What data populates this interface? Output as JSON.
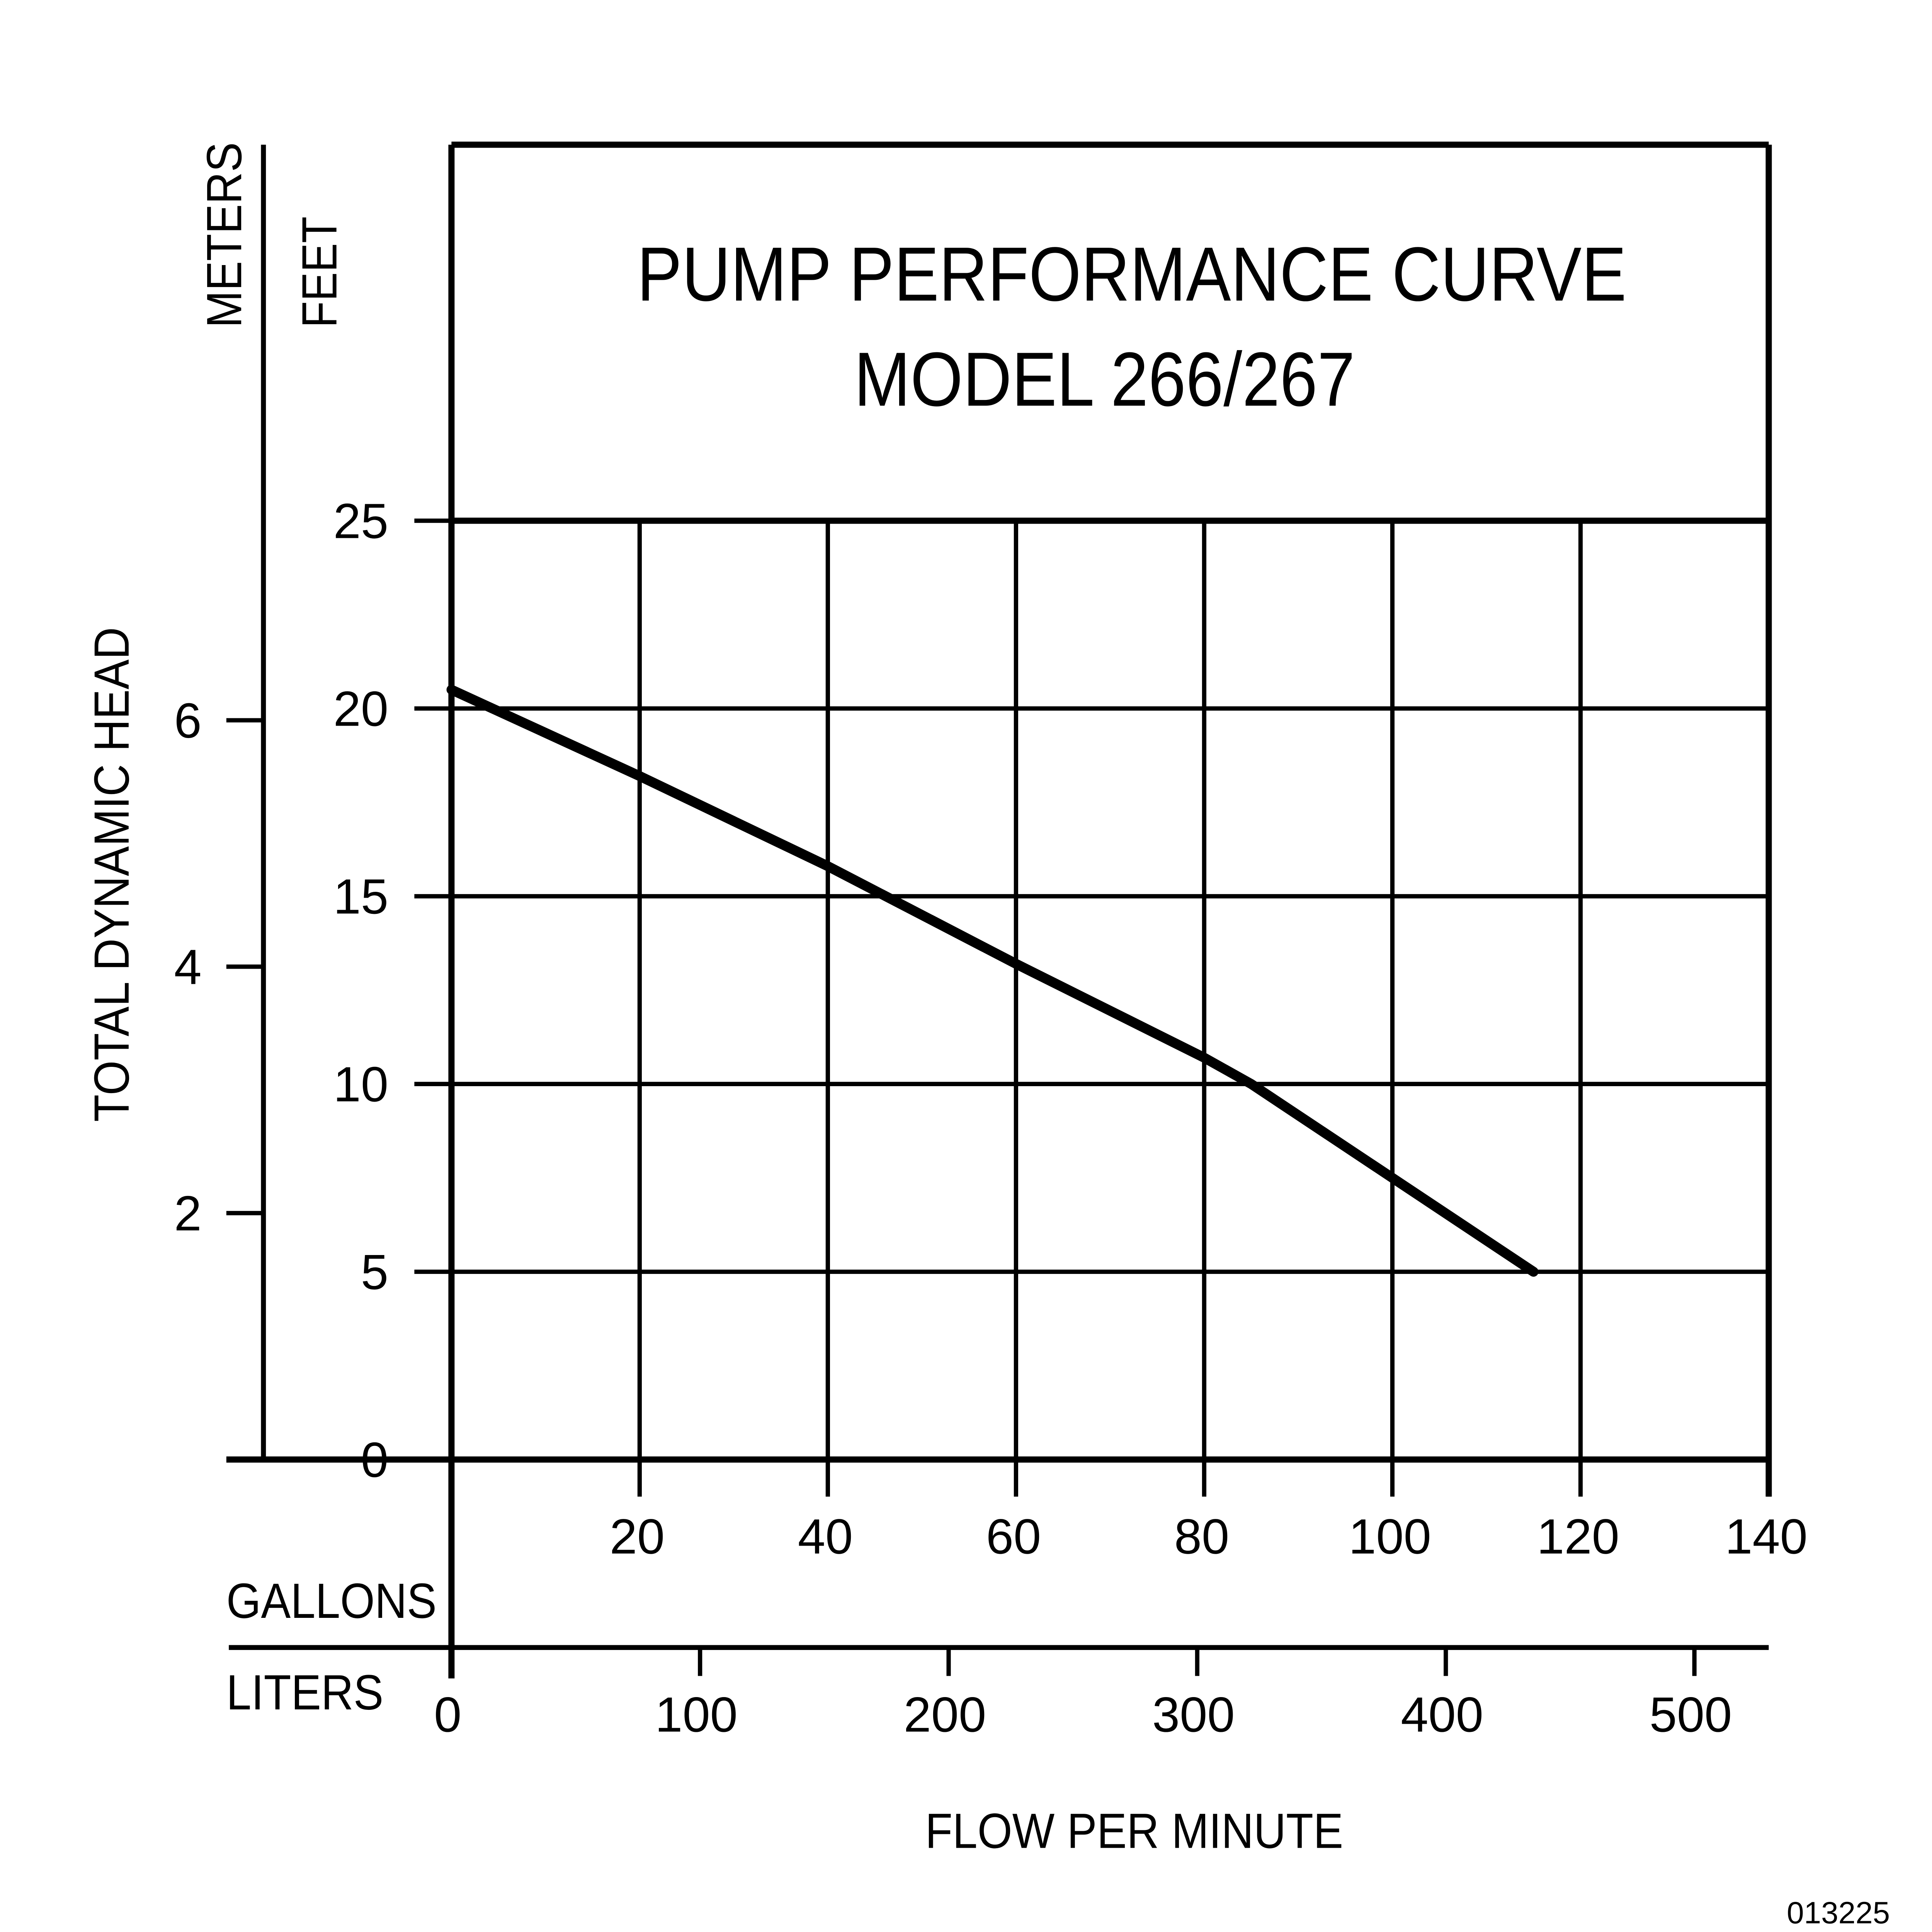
{
  "chart_data": {
    "type": "line",
    "title": "PUMP PERFORMANCE CURVE",
    "subtitle": "MODEL 266/267",
    "xlabel": "FLOW PER MINUTE",
    "ylabel": "TOTAL DYNAMIC HEAD",
    "x_primary": {
      "unit_label": "GALLONS",
      "range": [
        0,
        140
      ],
      "ticks": [
        20,
        40,
        60,
        80,
        100,
        120,
        140
      ],
      "tick_labels": [
        "20",
        "40",
        "60",
        "80",
        "100",
        "120",
        "140"
      ]
    },
    "x_secondary": {
      "unit_label": "LITERS",
      "ticks": [
        0,
        100,
        200,
        300,
        400,
        500
      ],
      "tick_labels": [
        "0",
        "100",
        "200",
        "300",
        "400",
        "500"
      ],
      "liters_per_gallon": 3.785
    },
    "y_primary": {
      "unit_label": "FEET",
      "range": [
        0,
        25
      ],
      "ticks": [
        0,
        5,
        10,
        15,
        20,
        25
      ],
      "tick_labels": [
        "0",
        "5",
        "10",
        "15",
        "20",
        "25"
      ]
    },
    "y_secondary": {
      "unit_label": "METERS",
      "ticks": [
        2,
        4,
        6
      ],
      "tick_labels": [
        "2",
        "4",
        "6"
      ],
      "feet_per_meter": 3.281
    },
    "grid": true,
    "series": [
      {
        "name": "Model 266/267",
        "x": [
          0,
          20,
          40,
          60,
          80,
          85,
          100,
          115
        ],
        "y": [
          20.5,
          18.2,
          15.8,
          13.2,
          10.7,
          10,
          7.5,
          5
        ]
      }
    ]
  },
  "footer": {
    "code": "013225"
  }
}
